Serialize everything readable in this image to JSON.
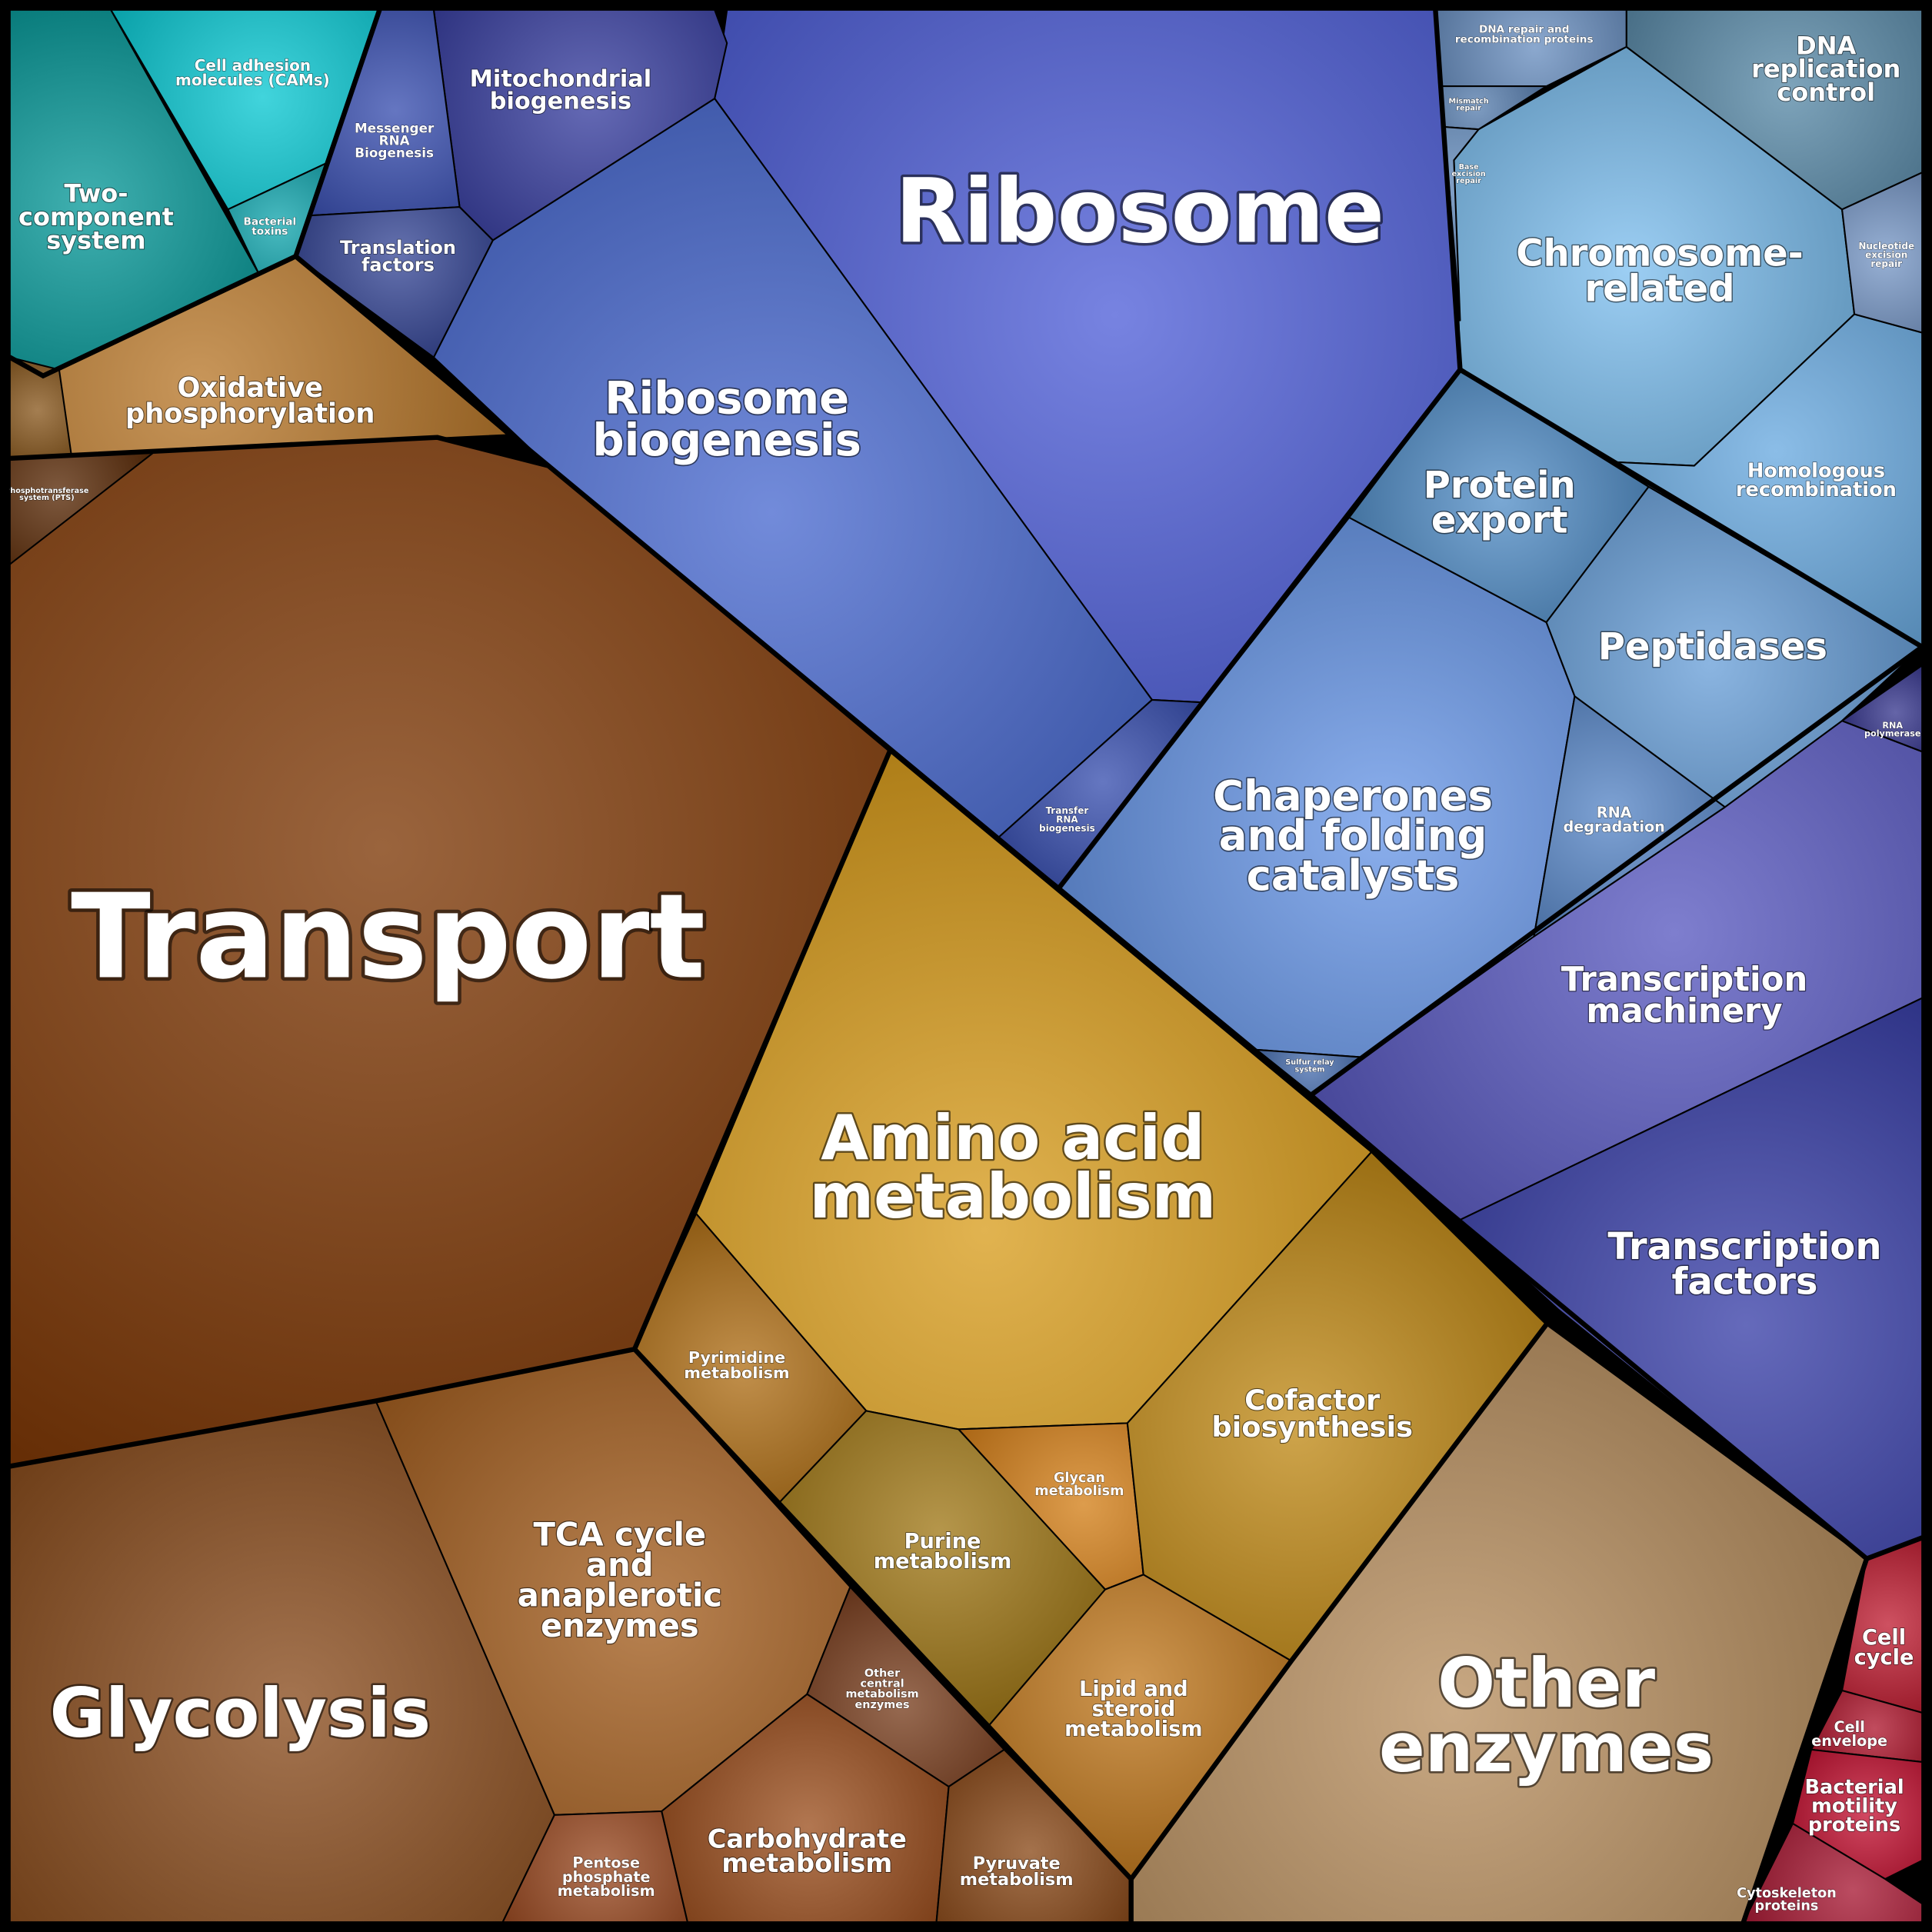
{
  "nodes": [
    {
      "label": "Transport"
    },
    {
      "label": "Ribosome"
    },
    {
      "label": "Ribosome\nbiogenesis"
    },
    {
      "label": "Amino acid\nmetabolism"
    },
    {
      "label": "Glycolysis"
    },
    {
      "label": "Other\nenzymes"
    },
    {
      "label": "Chaperones\nand folding\ncatalysts"
    },
    {
      "label": "Chromosome-\nrelated"
    },
    {
      "label": "Transcription\nmachinery"
    },
    {
      "label": "Transcription\nfactors"
    },
    {
      "label": "Peptidases"
    },
    {
      "label": "Protein\nexport"
    },
    {
      "label": "TCA cycle\nand\nanaplerotic\nenzymes"
    },
    {
      "label": "Cofactor\nbiosynthesis"
    },
    {
      "label": "Oxidative\nphosphorylation"
    },
    {
      "label": "Mitochondrial\nbiogenesis"
    },
    {
      "label": "Two-\ncomponent\nsystem"
    },
    {
      "label": "DNA\nreplication\ncontrol"
    },
    {
      "label": "Homologous\nrecombination"
    },
    {
      "label": "Carbohydrate\nmetabolism"
    },
    {
      "label": "Lipid and\nsteroid\nmetabolism"
    },
    {
      "label": "Purine\nmetabolism"
    },
    {
      "label": "Translation\nfactors"
    },
    {
      "label": "Cell adhesion\nmolecules (CAMs)"
    },
    {
      "label": "Messenger\nRNA\nBiogenesis"
    },
    {
      "label": "Pyrimidine\nmetabolism"
    },
    {
      "label": "Glycan\nmetabolism"
    },
    {
      "label": "Other\ncentral\nmetabolism\nenzymes"
    },
    {
      "label": "Pentose\nphosphate\nmetabolism"
    },
    {
      "label": "Pyruvate\nmetabolism"
    },
    {
      "label": "Cell\ncycle"
    },
    {
      "label": "Cell\nenvelope"
    },
    {
      "label": "Bacterial\nmotility\nproteins"
    },
    {
      "label": "Cytoskeleton\nproteins"
    },
    {
      "label": "RNA\ndegradation"
    },
    {
      "label": "Bacterial\ntoxins"
    },
    {
      "label": "Transfer\nRNA\nbiogenesis"
    },
    {
      "label": "DNA repair and\nrecombination proteins"
    },
    {
      "label": "Nucleotide\nexcision\nrepair"
    },
    {
      "label": "RNA\npolymerase"
    },
    {
      "label": "Mismatch\nrepair"
    },
    {
      "label": "Base\nexcision\nrepair"
    },
    {
      "label": "Sulfur relay\nsystem"
    },
    {
      "label": "Phosphotransferase\nsystem (PTS)"
    }
  ]
}
